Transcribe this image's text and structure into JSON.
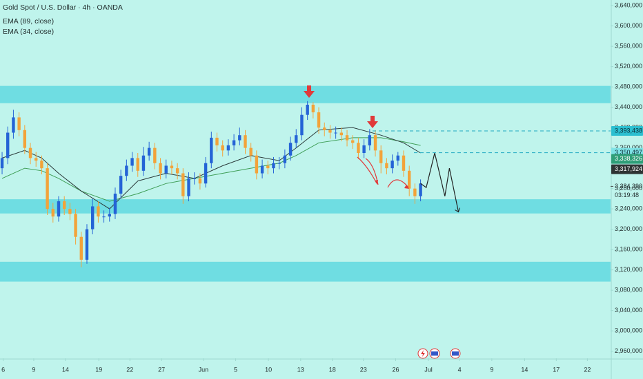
{
  "chart_data": {
    "type": "candlestick",
    "title": "Gold Spot / U.S. Dollar · 4h · OANDA",
    "indicators": [
      {
        "name": "EMA (89, close)",
        "color": "#3f9e57",
        "index": [
          0,
          4,
          7,
          10,
          14,
          19,
          24,
          29,
          34,
          39,
          44,
          49,
          52,
          56,
          62,
          67,
          71,
          74
        ],
        "values": [
          3300,
          3320,
          3315,
          3300,
          3275,
          3255,
          3270,
          3290,
          3300,
          3310,
          3320,
          3330,
          3345,
          3370,
          3380,
          3380,
          3372,
          3365
        ]
      },
      {
        "name": "EMA (34, close)",
        "color": "#2b3a3a",
        "index": [
          0,
          4,
          7,
          10,
          14,
          19,
          24,
          29,
          34,
          39,
          44,
          49,
          52,
          56,
          62,
          67,
          71,
          74
        ],
        "values": [
          3340,
          3355,
          3340,
          3310,
          3275,
          3240,
          3295,
          3310,
          3300,
          3325,
          3345,
          3335,
          3360,
          3395,
          3400,
          3385,
          3370,
          3350
        ]
      }
    ],
    "up_color": "#2463d6",
    "down_color": "#f2a33a",
    "open": [
      3320,
      3340,
      3390,
      3420,
      3395,
      3360,
      3340,
      3335,
      3320,
      3240,
      3225,
      3255,
      3240,
      3230,
      3185,
      3140,
      3200,
      3245,
      3225,
      3225,
      3230,
      3270,
      3305,
      3325,
      3340,
      3315,
      3345,
      3360,
      3330,
      3310,
      3325,
      3320,
      3310,
      3265,
      3300,
      3300,
      3290,
      3330,
      3380,
      3365,
      3355,
      3365,
      3375,
      3385,
      3360,
      3345,
      3310,
      3325,
      3320,
      3330,
      3330,
      3345,
      3370,
      3385,
      3425,
      3445,
      3430,
      3400,
      3395,
      3390,
      3390,
      3385,
      3375,
      3370,
      3350,
      3365,
      3385,
      3355,
      3330,
      3320,
      3335,
      3345,
      3315,
      3280,
      3265
    ],
    "high": [
      3352,
      3402,
      3435,
      3430,
      3405,
      3370,
      3352,
      3345,
      3330,
      3252,
      3265,
      3265,
      3252,
      3240,
      3195,
      3210,
      3260,
      3255,
      3237,
      3242,
      3282,
      3317,
      3337,
      3352,
      3350,
      3362,
      3372,
      3370,
      3340,
      3337,
      3335,
      3330,
      3320,
      3312,
      3312,
      3310,
      3342,
      3392,
      3390,
      3375,
      3377,
      3387,
      3400,
      3395,
      3370,
      3355,
      3337,
      3335,
      3342,
      3342,
      3357,
      3382,
      3397,
      3440,
      3452,
      3450,
      3440,
      3410,
      3405,
      3402,
      3400,
      3395,
      3385,
      3380,
      3377,
      3397,
      3395,
      3365,
      3340,
      3347,
      3352,
      3355,
      3325,
      3290,
      3298
    ],
    "low": [
      3308,
      3328,
      3378,
      3383,
      3348,
      3328,
      3323,
      3308,
      3228,
      3213,
      3215,
      3228,
      3218,
      3170,
      3125,
      3132,
      3190,
      3213,
      3213,
      3215,
      3220,
      3260,
      3295,
      3313,
      3303,
      3305,
      3335,
      3318,
      3298,
      3300,
      3308,
      3298,
      3250,
      3255,
      3288,
      3278,
      3282,
      3320,
      3353,
      3343,
      3345,
      3355,
      3365,
      3348,
      3333,
      3298,
      3300,
      3308,
      3310,
      3318,
      3320,
      3335,
      3360,
      3375,
      3415,
      3418,
      3388,
      3383,
      3378,
      3378,
      3373,
      3363,
      3358,
      3338,
      3340,
      3355,
      3343,
      3310,
      3308,
      3310,
      3325,
      3303,
      3265,
      3250,
      3255
    ],
    "close": [
      3340,
      3390,
      3420,
      3395,
      3360,
      3340,
      3335,
      3320,
      3240,
      3225,
      3255,
      3240,
      3230,
      3185,
      3140,
      3200,
      3245,
      3225,
      3225,
      3230,
      3270,
      3305,
      3325,
      3340,
      3315,
      3345,
      3360,
      3330,
      3310,
      3325,
      3320,
      3310,
      3265,
      3300,
      3300,
      3290,
      3330,
      3380,
      3365,
      3355,
      3365,
      3375,
      3385,
      3360,
      3345,
      3310,
      3325,
      3320,
      3330,
      3330,
      3345,
      3370,
      3385,
      3425,
      3445,
      3430,
      3400,
      3395,
      3390,
      3390,
      3385,
      3375,
      3370,
      3350,
      3365,
      3385,
      3355,
      3330,
      3320,
      3335,
      3345,
      3315,
      3280,
      3265,
      3290
    ],
    "projection": {
      "index": [
        74,
        75,
        76.5,
        78.3,
        79.1,
        80.7
      ],
      "values": [
        3290,
        3282,
        3350,
        3265,
        3320,
        3234
      ]
    },
    "zones": [
      [
        3448,
        3482
      ],
      [
        3231,
        3259
      ],
      [
        3097,
        3136
      ]
    ],
    "ylim": [
      2946,
      3651
    ],
    "yticks": [
      {
        "value": 3640,
        "label": "3,640,000"
      },
      {
        "value": 3600,
        "label": "3,600,000"
      },
      {
        "value": 3560,
        "label": "3,560,000"
      },
      {
        "value": 3520,
        "label": "3,520,000"
      },
      {
        "value": 3480,
        "label": "3,480,000"
      },
      {
        "value": 3440,
        "label": "3,440,000"
      },
      {
        "value": 3400,
        "label": "3,400,000"
      },
      {
        "value": 3360,
        "label": "3,360,000"
      },
      {
        "value": 3320,
        "label": "3,320,000"
      },
      {
        "value": 3280,
        "label": "3,280,000"
      },
      {
        "value": 3240,
        "label": "3,240,000"
      },
      {
        "value": 3200,
        "label": "3,200,000"
      },
      {
        "value": 3160,
        "label": "3,160,000"
      },
      {
        "value": 3120,
        "label": "3,120,000"
      },
      {
        "value": 3080,
        "label": "3,080,000"
      },
      {
        "value": 3040,
        "label": "3,040,000"
      },
      {
        "value": 3000,
        "label": "3,000,000"
      },
      {
        "value": 2960,
        "label": "2,960,000"
      }
    ],
    "xlim": [
      -0.37,
      107.6
    ],
    "xticks": [
      {
        "value": 0.2,
        "label": "6"
      },
      {
        "value": 5.6,
        "label": "9"
      },
      {
        "value": 11.2,
        "label": "14"
      },
      {
        "value": 17.1,
        "label": "19"
      },
      {
        "value": 22.6,
        "label": "22"
      },
      {
        "value": 28.2,
        "label": "27"
      },
      {
        "value": 35.6,
        "label": "Jun"
      },
      {
        "value": 41.3,
        "label": "5"
      },
      {
        "value": 47.1,
        "label": "10"
      },
      {
        "value": 52.8,
        "label": "13"
      },
      {
        "value": 58.4,
        "label": "18"
      },
      {
        "value": 63.9,
        "label": "23"
      },
      {
        "value": 69.6,
        "label": "26"
      },
      {
        "value": 75.4,
        "label": "Jul"
      },
      {
        "value": 80.9,
        "label": "4"
      },
      {
        "value": 86.6,
        "label": "9"
      },
      {
        "value": 92.4,
        "label": "14"
      },
      {
        "value": 98,
        "label": "17"
      },
      {
        "value": 103.5,
        "label": "22"
      }
    ],
    "price_tags": [
      {
        "value": 3393.438,
        "label": "3,393,438",
        "color": "#2bbfd0",
        "text_color": "#0b2b33",
        "dashed": true
      },
      {
        "value": 3350.497,
        "label": "3,350,497",
        "color": "#7fe3e6",
        "text_color": "#0b2b33",
        "dashed": true
      },
      {
        "value": 3338.326,
        "label": "3,338,326",
        "color": "#2f9e78",
        "text_color": "#ffffff",
        "dashed": false
      },
      {
        "value": 3317.924,
        "label": "3,317,924",
        "color": "#2e3434",
        "text_color": "#ffffff",
        "dashed": false
      }
    ],
    "last_price": {
      "value": 3284.39,
      "label": "3,284,390",
      "countdown": "03:19:48"
    }
  }
}
